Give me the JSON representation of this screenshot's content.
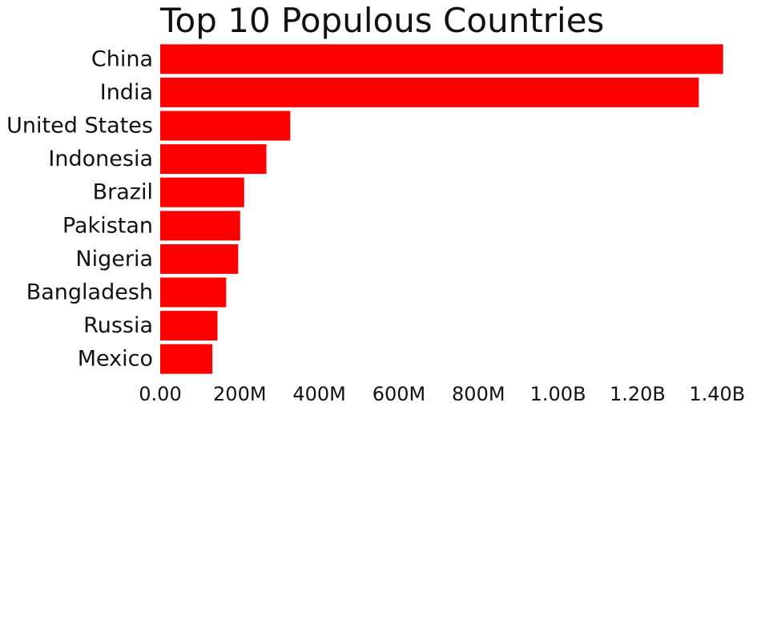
{
  "chart_data": {
    "type": "bar",
    "orientation": "horizontal",
    "title": "Top 10 Populous Countries",
    "xlabel": "",
    "ylabel": "",
    "categories": [
      "China",
      "India",
      "United States",
      "Indonesia",
      "Brazil",
      "Pakistan",
      "Nigeria",
      "Bangladesh",
      "Russia",
      "Mexico"
    ],
    "values": [
      1415000000,
      1354000000,
      327000000,
      267000000,
      211000000,
      201000000,
      196000000,
      166000000,
      144000000,
      131000000
    ],
    "xlim": [
      0,
      1480000000
    ],
    "ticks": [
      {
        "value": 0,
        "label": "0.00"
      },
      {
        "value": 200000000,
        "label": "200M"
      },
      {
        "value": 400000000,
        "label": "400M"
      },
      {
        "value": 600000000,
        "label": "600M"
      },
      {
        "value": 800000000,
        "label": "800M"
      },
      {
        "value": 1000000000,
        "label": "1.00B"
      },
      {
        "value": 1200000000,
        "label": "1.20B"
      },
      {
        "value": 1400000000,
        "label": "1.40B"
      }
    ],
    "bar_color": "#ff0000",
    "grid": false,
    "legend": "none"
  }
}
